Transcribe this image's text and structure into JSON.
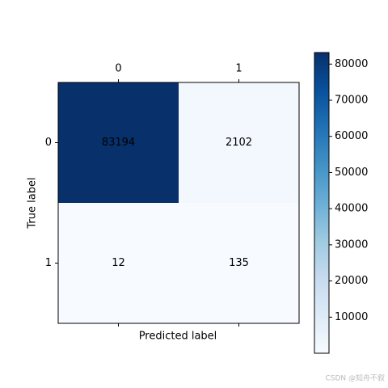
{
  "chart_data": {
    "type": "heatmap",
    "xlabel": "Predicted label",
    "ylabel": "True label",
    "x_categories": [
      "0",
      "1"
    ],
    "y_categories": [
      "0",
      "1"
    ],
    "values": [
      [
        83194,
        2102
      ],
      [
        12,
        135
      ]
    ],
    "colormap": "Blues",
    "colorbar": {
      "lim": [
        12,
        83194
      ],
      "ticks": [
        10000,
        20000,
        30000,
        40000,
        50000,
        60000,
        70000,
        80000
      ]
    }
  },
  "watermark": "CSDN @知舟不叙"
}
